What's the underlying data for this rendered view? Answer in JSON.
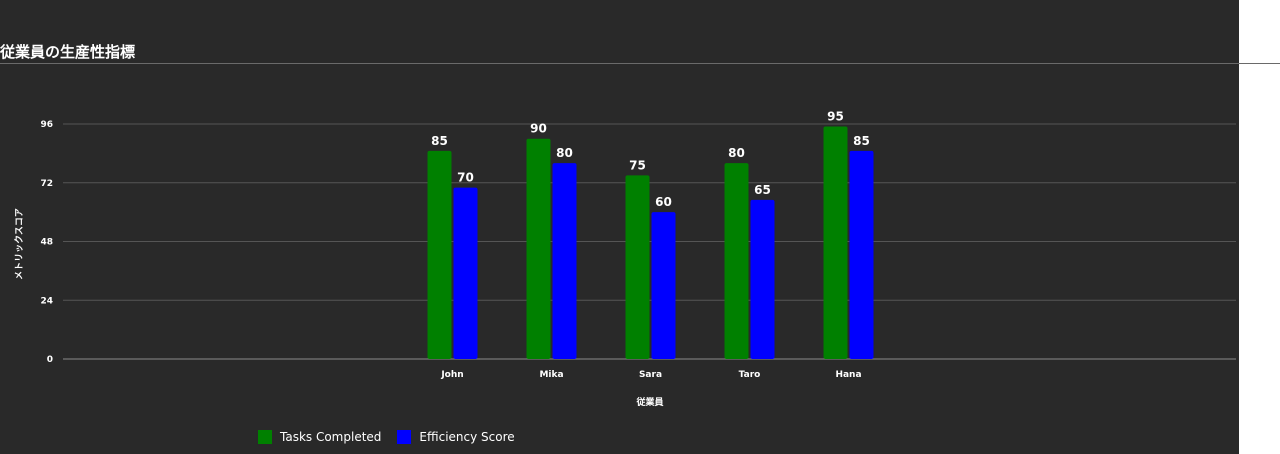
{
  "title": "従業員の生産性指標",
  "chart_data": {
    "type": "bar",
    "categories": [
      "John",
      "Mika",
      "Sara",
      "Taro",
      "Hana"
    ],
    "series": [
      {
        "name": "Tasks Completed",
        "color": "#008000",
        "values": [
          85,
          90,
          75,
          80,
          95
        ]
      },
      {
        "name": "Efficiency Score",
        "color": "#0000ff",
        "values": [
          70,
          80,
          60,
          65,
          85
        ]
      }
    ],
    "xlabel": "従業員",
    "ylabel": "メトリックスコア",
    "ylim": [
      0,
      96
    ],
    "yticks": [
      0,
      24,
      48,
      72,
      96
    ],
    "grid": true,
    "legend_position": "bottom-left",
    "data_labels": true
  }
}
